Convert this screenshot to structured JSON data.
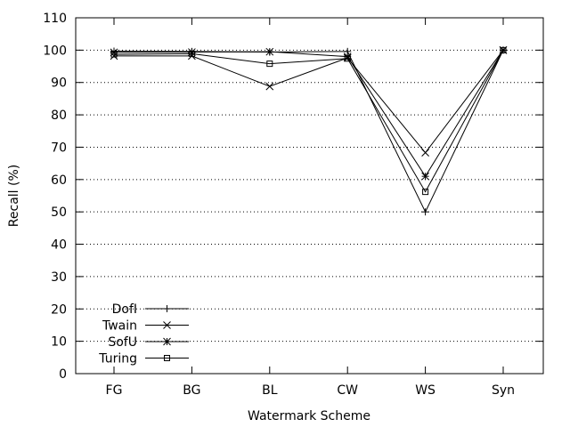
{
  "chart_data": {
    "type": "line",
    "title": "",
    "xlabel": "Watermark Scheme",
    "ylabel": "Recall (%)",
    "categories": [
      "FG",
      "BG",
      "BL",
      "CW",
      "WS",
      "Syn"
    ],
    "ylim": [
      0,
      110
    ],
    "yticks": [
      0,
      10,
      20,
      30,
      40,
      50,
      60,
      70,
      80,
      90,
      100,
      110
    ],
    "grid": true,
    "legend_position": "bottom-left",
    "series": [
      {
        "name": "DofI",
        "marker": "plus",
        "values": [
          99.7,
          99.6,
          99.4,
          99.6,
          50,
          100
        ]
      },
      {
        "name": "Twain",
        "marker": "cross",
        "values": [
          98.2,
          98.2,
          88.8,
          97.6,
          68.3,
          100
        ]
      },
      {
        "name": "SofU",
        "marker": "star",
        "values": [
          99.3,
          99.4,
          99.5,
          98.0,
          61.0,
          100
        ]
      },
      {
        "name": "Turing",
        "marker": "square",
        "values": [
          98.7,
          98.9,
          95.8,
          97.4,
          56.2,
          100
        ]
      }
    ]
  }
}
